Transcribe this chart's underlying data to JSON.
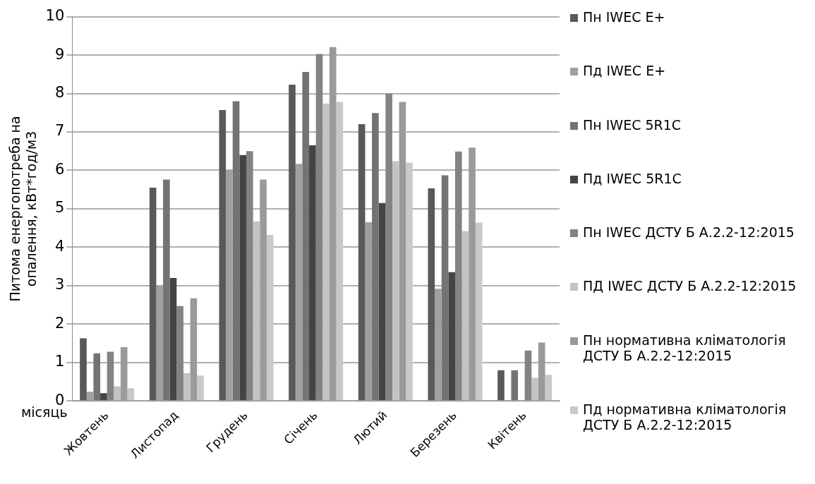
{
  "chart_data": {
    "type": "bar",
    "ylabel": "Питома енергопотреба на опалення, кВт*год/м3",
    "xlabel": "місяць",
    "categories": [
      "Жовтень",
      "Листопад",
      "Грудень",
      "Січень",
      "Лютий",
      "Березень",
      "Квітень"
    ],
    "series": [
      {
        "name": "Пн IWEC E+",
        "color": "#595959",
        "values": [
          1.63,
          5.55,
          7.57,
          8.23,
          7.2,
          5.53,
          0.8
        ]
      },
      {
        "name": "Пд IWEC E+",
        "color": "#a0a0a0",
        "values": [
          0.24,
          3.0,
          6.0,
          6.17,
          4.65,
          2.92,
          0
        ]
      },
      {
        "name": "Пн IWEC 5R1C",
        "color": "#737373",
        "values": [
          1.24,
          5.76,
          7.8,
          8.56,
          7.49,
          5.87,
          0.8
        ]
      },
      {
        "name": "Пд IWEC 5R1C",
        "color": "#444444",
        "values": [
          0.2,
          3.2,
          6.4,
          6.65,
          5.15,
          3.35,
          0
        ]
      },
      {
        "name": "Пн IWEC ДСТУ Б А.2.2-12:2015",
        "color": "#838383",
        "values": [
          1.28,
          2.47,
          6.5,
          9.03,
          8.0,
          6.49,
          1.31
        ]
      },
      {
        "name": "ПД IWEC ДСТУ Б А.2.2-12:2015",
        "color": "#c3c3c3",
        "values": [
          0.38,
          0.72,
          4.67,
          7.74,
          6.24,
          4.42,
          0.6
        ]
      },
      {
        "name": "Пн нормативна кліматологія ДСТУ Б А.2.2-12:2015",
        "color": "#9a9a9a",
        "values": [
          1.4,
          2.67,
          5.76,
          9.21,
          7.78,
          6.59,
          1.52
        ]
      },
      {
        "name": "Пд нормативна кліматологія ДСТУ Б А.2.2-12:2015",
        "color": "#c9c9c9",
        "values": [
          0.33,
          0.66,
          4.32,
          7.78,
          6.2,
          4.64,
          0.68
        ]
      }
    ],
    "ylim": [
      0,
      10
    ],
    "yticks": [
      0,
      1,
      2,
      3,
      4,
      5,
      6,
      7,
      8,
      9,
      10
    ],
    "grid": "y",
    "legend": "right"
  }
}
